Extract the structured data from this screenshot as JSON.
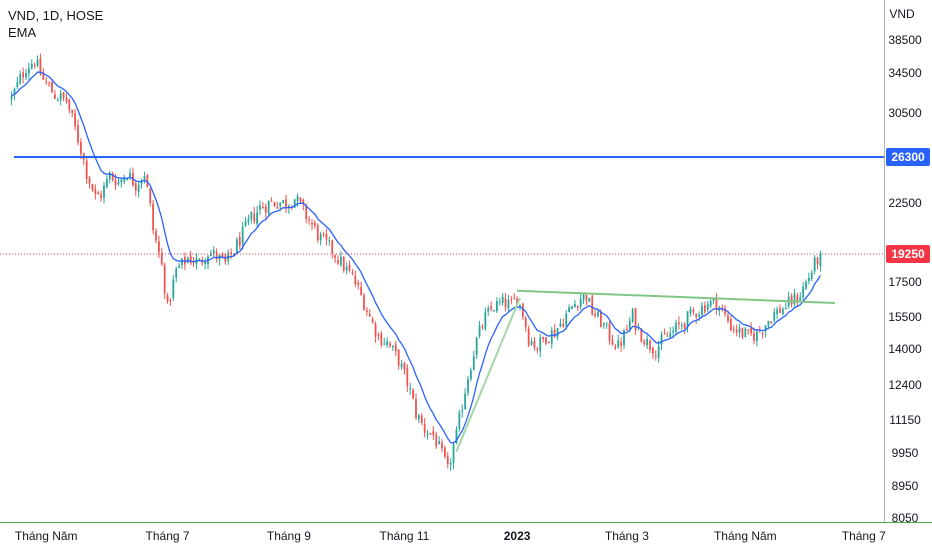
{
  "legend": {
    "symbol_line": "VND, 1D, HOSE",
    "indicator": "EMA"
  },
  "chart_data": {
    "type": "candlestick",
    "currency_label": "VND",
    "y_ticks": [
      8050,
      8950,
      9950,
      11150,
      12400,
      14000,
      15500,
      17500,
      19250,
      22500,
      26300,
      30500,
      34500,
      38500
    ],
    "x_labels": [
      {
        "label": "Tháng Năm",
        "t": 12,
        "bold": false
      },
      {
        "label": "Tháng 7",
        "t": 54,
        "bold": false
      },
      {
        "label": "Tháng 9",
        "t": 96,
        "bold": false
      },
      {
        "label": "Tháng 11",
        "t": 136,
        "bold": false
      },
      {
        "label": "2023",
        "t": 175,
        "bold": true
      },
      {
        "label": "Tháng 3",
        "t": 213,
        "bold": false
      },
      {
        "label": "Tháng Năm",
        "t": 254,
        "bold": false
      },
      {
        "label": "Tháng 7",
        "t": 295,
        "bold": false
      }
    ],
    "x_range": [
      -4,
      302
    ],
    "horizontal_level": {
      "value": 26300,
      "label": "26300",
      "color": "#2962ff"
    },
    "last_price": {
      "value": 19250,
      "label": "19250",
      "color": "#f23645"
    },
    "trendlines": [
      {
        "from": [
          175,
          17000
        ],
        "to": [
          285,
          16300
        ],
        "color": "#81c784"
      },
      {
        "from": [
          154,
          10000
        ],
        "to": [
          176,
          16600
        ],
        "color": "#a5d6a7"
      }
    ],
    "anchors": [
      [
        0,
        32000
      ],
      [
        5,
        35200
      ],
      [
        8,
        36000
      ],
      [
        11,
        33800
      ],
      [
        15,
        32300
      ],
      [
        19,
        31700
      ],
      [
        22,
        29000
      ],
      [
        26,
        25000
      ],
      [
        29,
        23000
      ],
      [
        31,
        23200
      ],
      [
        34,
        24800
      ],
      [
        37,
        24200
      ],
      [
        40,
        25000
      ],
      [
        43,
        24000
      ],
      [
        46,
        25000
      ],
      [
        49,
        20800
      ],
      [
        52,
        18500
      ],
      [
        54,
        16000
      ],
      [
        57,
        18200
      ],
      [
        61,
        19000
      ],
      [
        65,
        18700
      ],
      [
        68,
        19400
      ],
      [
        71,
        19100
      ],
      [
        74,
        18600
      ],
      [
        77,
        19500
      ],
      [
        80,
        20500
      ],
      [
        83,
        21500
      ],
      [
        86,
        22200
      ],
      [
        89,
        22500
      ],
      [
        92,
        22600
      ],
      [
        95,
        22500
      ],
      [
        98,
        22900
      ],
      [
        101,
        22000
      ],
      [
        104,
        21100
      ],
      [
        107,
        20200
      ],
      [
        111,
        19500
      ],
      [
        114,
        18700
      ],
      [
        118,
        17800
      ],
      [
        121,
        16700
      ],
      [
        124,
        15500
      ],
      [
        127,
        14600
      ],
      [
        130,
        14300
      ],
      [
        134,
        13500
      ],
      [
        137,
        12500
      ],
      [
        140,
        11400
      ],
      [
        143,
        10800
      ],
      [
        146,
        10600
      ],
      [
        149,
        9900
      ],
      [
        151,
        9400
      ],
      [
        154,
        10600
      ],
      [
        158,
        12800
      ],
      [
        161,
        14400
      ],
      [
        164,
        15500
      ],
      [
        167,
        16100
      ],
      [
        170,
        16300
      ],
      [
        173,
        16200
      ],
      [
        175,
        16600
      ],
      [
        177,
        15700
      ],
      [
        179,
        14500
      ],
      [
        182,
        14100
      ],
      [
        185,
        14600
      ],
      [
        188,
        14800
      ],
      [
        191,
        15400
      ],
      [
        194,
        16100
      ],
      [
        197,
        16600
      ],
      [
        199,
        16700
      ],
      [
        201,
        15800
      ],
      [
        204,
        15300
      ],
      [
        207,
        14600
      ],
      [
        210,
        14100
      ],
      [
        213,
        14900
      ],
      [
        215,
        15600
      ],
      [
        217,
        14900
      ],
      [
        220,
        14300
      ],
      [
        223,
        14000
      ],
      [
        226,
        14500
      ],
      [
        229,
        14800
      ],
      [
        232,
        15200
      ],
      [
        235,
        15600
      ],
      [
        238,
        15900
      ],
      [
        241,
        16300
      ],
      [
        244,
        16300
      ],
      [
        246,
        15800
      ],
      [
        249,
        15100
      ],
      [
        252,
        14800
      ],
      [
        255,
        14600
      ],
      [
        258,
        14700
      ],
      [
        261,
        15200
      ],
      [
        264,
        15700
      ],
      [
        267,
        16000
      ],
      [
        270,
        16400
      ],
      [
        273,
        16800
      ],
      [
        276,
        17800
      ],
      [
        278,
        18600
      ],
      [
        280,
        19250
      ]
    ],
    "colors": {
      "up": "#26a69a",
      "down": "#ef5350",
      "ema": "#2962ff"
    }
  }
}
